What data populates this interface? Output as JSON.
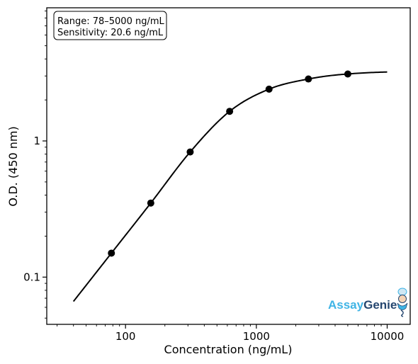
{
  "chart_data": {
    "type": "line",
    "title": "",
    "xlabel": "Concentration (ng/mL)",
    "ylabel": "O.D. (450 nm)",
    "xscale": "log",
    "yscale": "log",
    "xlim": [
      25,
      15000
    ],
    "ylim": [
      0.045,
      9.5
    ],
    "x_ticks": [
      100,
      1000,
      10000
    ],
    "x_tick_labels": [
      "100",
      "1000",
      "10000"
    ],
    "y_ticks": [
      0.1,
      1
    ],
    "y_tick_labels": [
      "0.1",
      "1"
    ],
    "grid": false,
    "series": [
      {
        "kind": "points",
        "x": [
          78,
          156,
          312,
          625,
          1250,
          2500,
          5000
        ],
        "y": [
          0.15,
          0.35,
          0.83,
          1.65,
          2.4,
          2.85,
          3.1
        ]
      },
      {
        "kind": "fit-curve",
        "x_range": [
          40,
          10000
        ]
      }
    ],
    "annotation": {
      "lines": [
        "Range: 78–5000 ng/mL",
        "Sensitivity: 20.6 ng/mL"
      ],
      "position": "top-left"
    },
    "colors": {
      "points": "#000000",
      "curve": "#000000"
    }
  },
  "logo": {
    "part1": "Assay",
    "part2": "Genie",
    "position": "bottom-right",
    "colors": {
      "part1": "#3fb4e5",
      "part2": "#25466f"
    },
    "icon": "genie-mascot-icon"
  }
}
